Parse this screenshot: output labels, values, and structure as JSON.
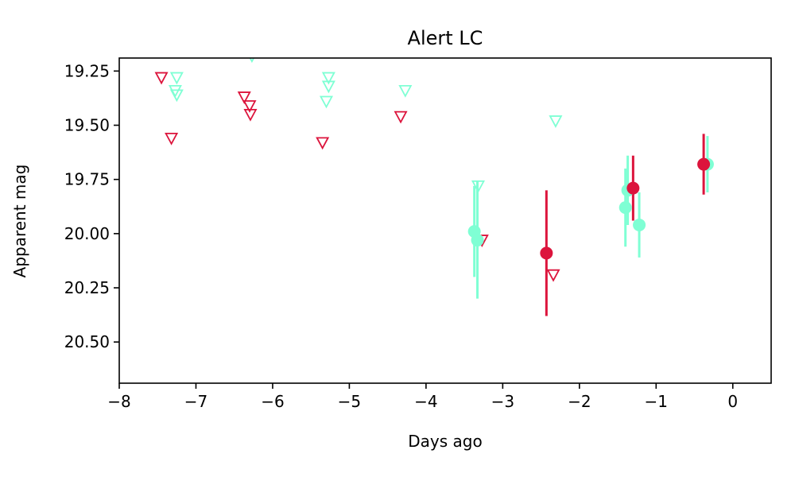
{
  "chart_data": {
    "type": "scatter",
    "title": "Alert LC",
    "xlabel": "Days ago",
    "ylabel": "Apparent mag",
    "xlim": [
      -8,
      0.5
    ],
    "ylim": [
      20.69,
      19.19
    ],
    "y_inverted": true,
    "grid": false,
    "xticks": [
      -8,
      -7,
      -6,
      -5,
      -4,
      -3,
      -2,
      -1,
      0
    ],
    "xtick_labels": [
      "−8",
      "−7",
      "−6",
      "−5",
      "−4",
      "−3",
      "−2",
      "−1",
      "0"
    ],
    "yticks": [
      19.25,
      19.5,
      19.75,
      20.0,
      20.25,
      20.5
    ],
    "ytick_labels": [
      "19.25",
      "19.50",
      "19.75",
      "20.00",
      "20.25",
      "20.50"
    ],
    "colors": {
      "red": "#dc143c",
      "aquamarine": "#7fffd4"
    },
    "series": [
      {
        "color": "#7fffd4",
        "kind": "upper_limit",
        "marker": "open-triangle-down",
        "points": [
          {
            "x": -7.25,
            "y": 19.28
          },
          {
            "x": -7.27,
            "y": 19.34
          },
          {
            "x": -7.25,
            "y": 19.36
          },
          {
            "x": -6.27,
            "y": 19.18
          },
          {
            "x": -5.27,
            "y": 19.28
          },
          {
            "x": -5.27,
            "y": 19.32
          },
          {
            "x": -5.3,
            "y": 19.39
          },
          {
            "x": -4.27,
            "y": 19.34
          },
          {
            "x": -3.32,
            "y": 19.78
          },
          {
            "x": -2.31,
            "y": 19.48
          }
        ]
      },
      {
        "color": "#dc143c",
        "kind": "upper_limit",
        "marker": "open-triangle-down",
        "points": [
          {
            "x": -7.45,
            "y": 19.28
          },
          {
            "x": -7.32,
            "y": 19.56
          },
          {
            "x": -6.37,
            "y": 19.37
          },
          {
            "x": -6.3,
            "y": 19.41
          },
          {
            "x": -6.29,
            "y": 19.45
          },
          {
            "x": -5.35,
            "y": 19.58
          },
          {
            "x": -4.33,
            "y": 19.46
          },
          {
            "x": -3.27,
            "y": 20.03
          },
          {
            "x": -2.34,
            "y": 20.19
          }
        ]
      },
      {
        "color": "#7fffd4",
        "kind": "detection",
        "marker": "filled-circle",
        "points": [
          {
            "x": -3.37,
            "y": 19.99,
            "err": 0.21
          },
          {
            "x": -3.33,
            "y": 20.03,
            "err": 0.27
          },
          {
            "x": -1.4,
            "y": 19.88,
            "err": 0.18
          },
          {
            "x": -1.37,
            "y": 19.8,
            "err": 0.16
          },
          {
            "x": -1.22,
            "y": 19.96,
            "err": 0.15
          },
          {
            "x": -0.33,
            "y": 19.68,
            "err": 0.13
          }
        ]
      },
      {
        "color": "#dc143c",
        "kind": "detection",
        "marker": "filled-circle",
        "points": [
          {
            "x": -2.43,
            "y": 20.09,
            "err": 0.29
          },
          {
            "x": -1.3,
            "y": 19.79,
            "err": 0.15
          },
          {
            "x": -0.38,
            "y": 19.68,
            "err": 0.14
          }
        ]
      }
    ]
  }
}
